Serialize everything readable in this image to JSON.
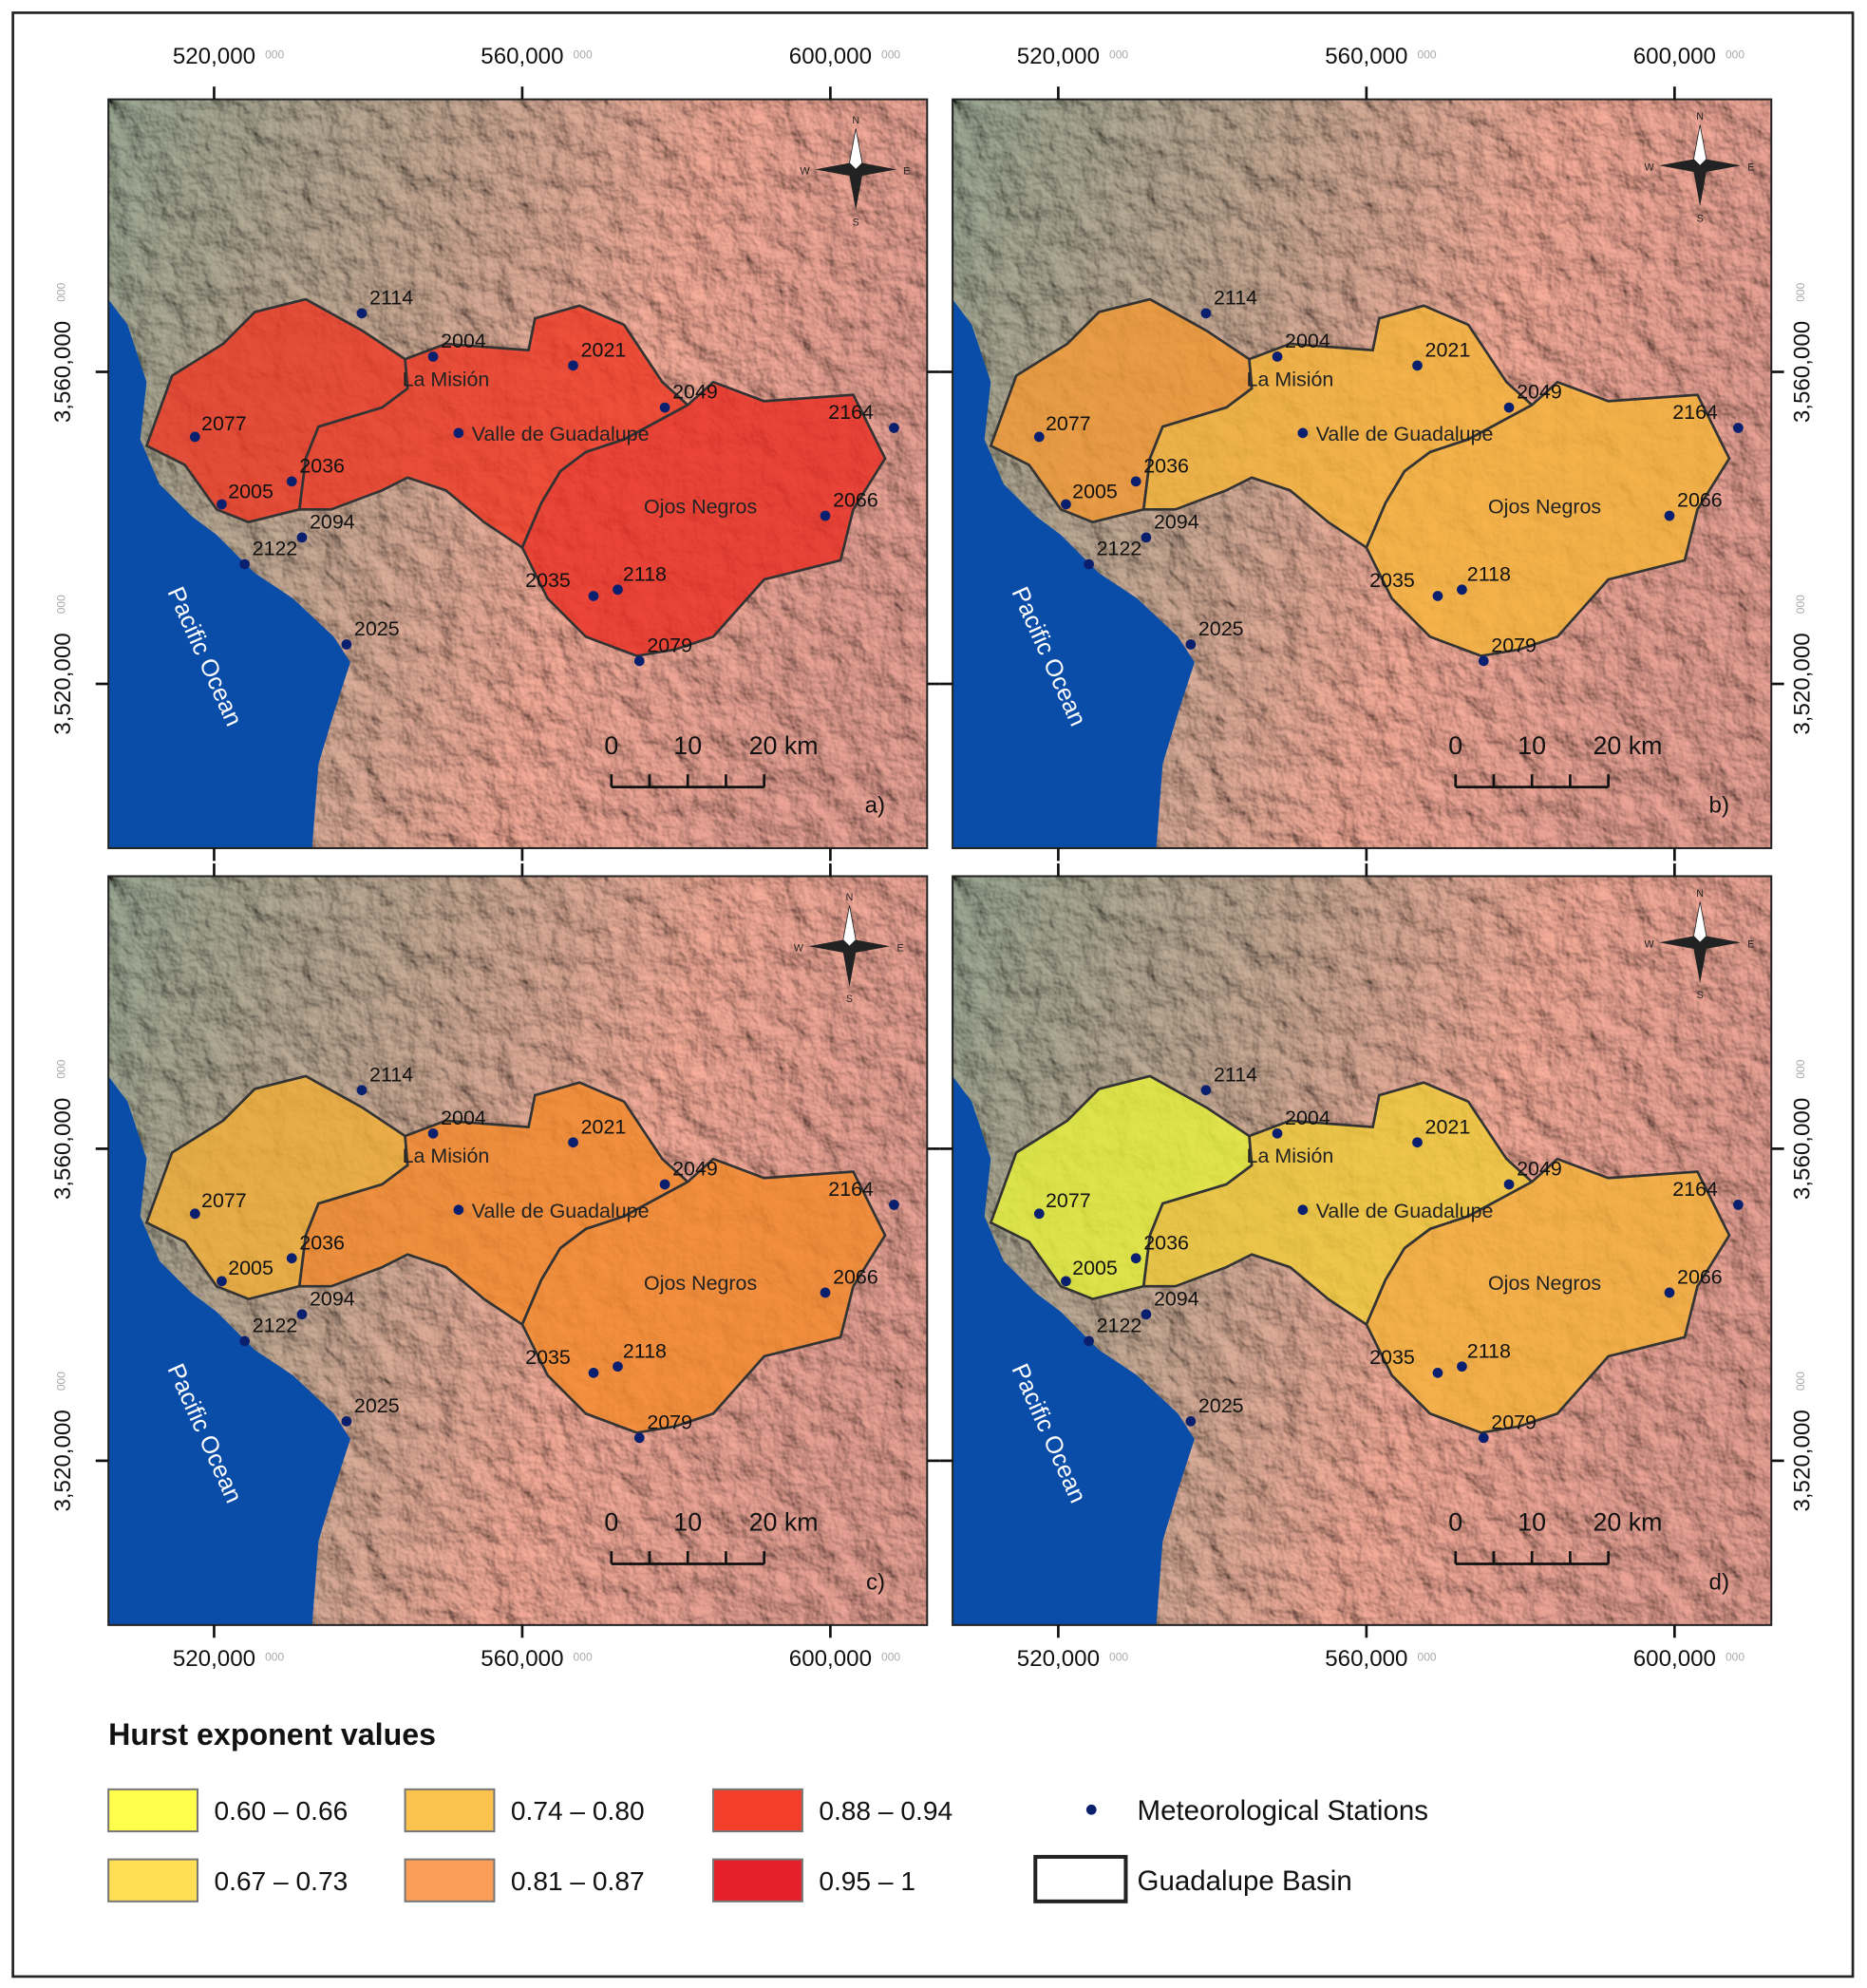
{
  "map": {
    "x_ticks": [
      "520,000",
      "560,000",
      "600,000"
    ],
    "tick_suffix": "000",
    "y_ticks": [
      "3,560,000",
      "3,520,000"
    ],
    "regions": [
      "La Misión",
      "Valle de Guadalupe",
      "Ojos Negros"
    ],
    "ocean": "Pacific Ocean",
    "stations": [
      "2114",
      "2004",
      "2021",
      "2049",
      "2164",
      "2077",
      "2036",
      "2005",
      "2094",
      "2122",
      "2066",
      "2035",
      "2118",
      "2025",
      "2079"
    ],
    "scale": [
      "0",
      "10",
      "20 km"
    ],
    "compass": [
      "N",
      "S",
      "W",
      "E"
    ],
    "panels": [
      {
        "label": "a)",
        "fills": [
          "#ee3a26",
          "#ee3a26",
          "#ea3025"
        ]
      },
      {
        "label": "b)",
        "fills": [
          "#f39a35",
          "#f7b53a",
          "#f7b53a"
        ]
      },
      {
        "label": "c)",
        "fills": [
          "#f2ae38",
          "#f48a2c",
          "#f48a2c"
        ]
      },
      {
        "label": "d)",
        "fills": [
          "#e6f03c",
          "#f0cc3a",
          "#f5b23a"
        ]
      }
    ]
  },
  "legend": {
    "title": "Hurst exponent values",
    "classes": [
      {
        "label": "0.60 – 0.66",
        "color": "#ffff4c"
      },
      {
        "label": "0.67 – 0.73",
        "color": "#ffdf55"
      },
      {
        "label": "0.74 – 0.80",
        "color": "#fbc34e"
      },
      {
        "label": "0.81 – 0.87",
        "color": "#fb9e57"
      },
      {
        "label": "0.88 – 0.94",
        "color": "#f43e2c"
      },
      {
        "label": "0.95 – 1",
        "color": "#e5202a"
      }
    ],
    "stations": "Meteorological Stations",
    "basin": "Guadalupe Basin"
  }
}
